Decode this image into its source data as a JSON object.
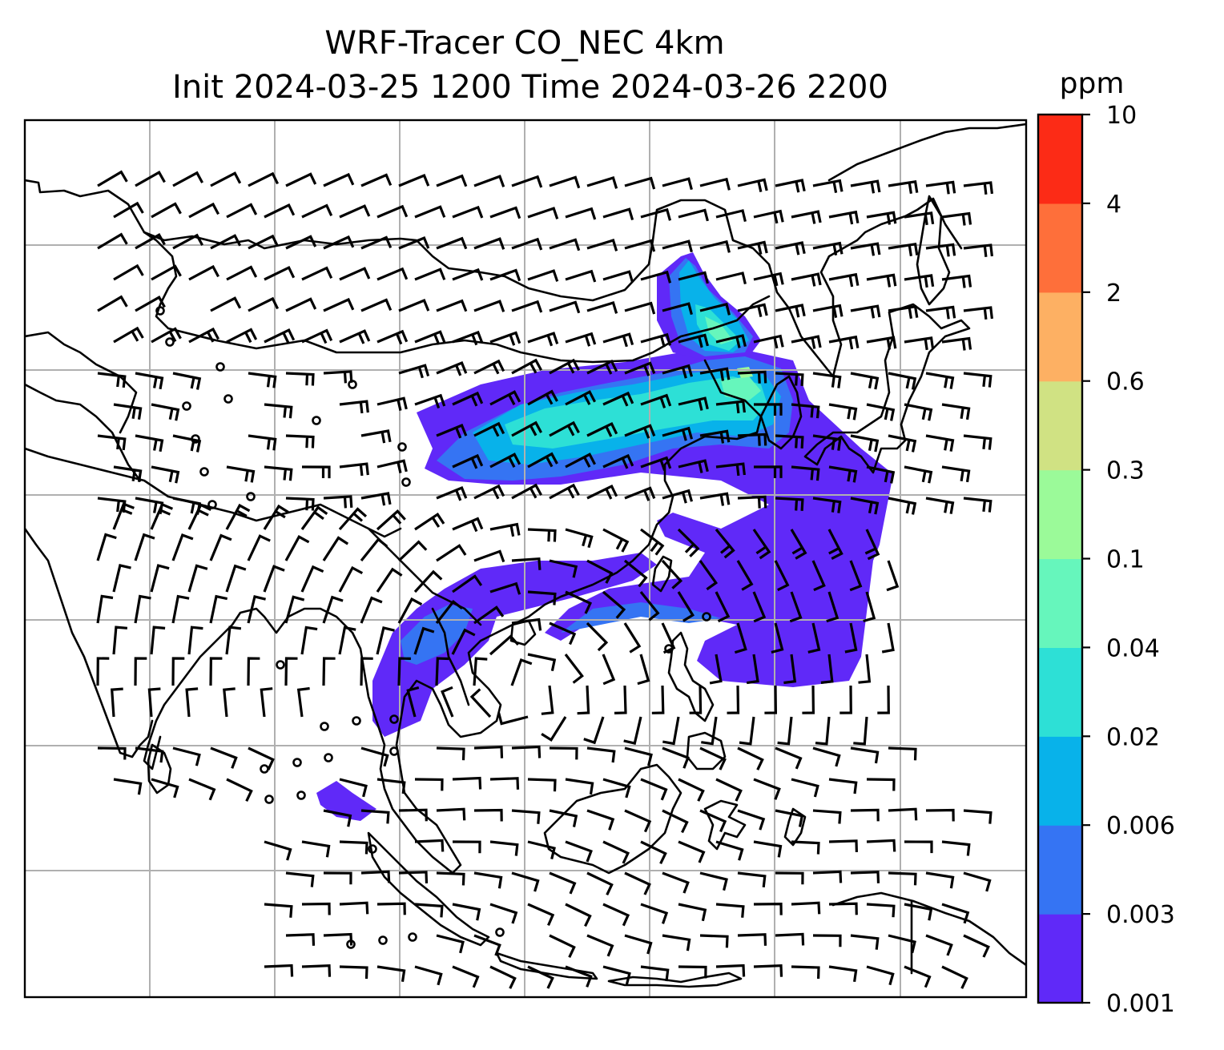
{
  "title": {
    "line1": "WRF-Tracer CO_NEC 4km",
    "line2": "Init 2024-03-25 1200 Time 2024-03-26 2200"
  },
  "colorbar": {
    "unit": "ppm",
    "levels": [
      "0.001",
      "0.003",
      "0.006",
      "0.02",
      "0.04",
      "0.1",
      "0.3",
      "0.6",
      "2",
      "4",
      "10"
    ],
    "colors": [
      "#6029f8",
      "#3574f3",
      "#08b2ea",
      "#2de0d6",
      "#66f6bc",
      "#9bfa99",
      "#d0e283",
      "#fdb063",
      "#fe6f3a",
      "#fc2b16"
    ]
  },
  "map": {
    "gridlines": true,
    "features": [
      "coastlines",
      "country-borders",
      "wind-barbs",
      "tracer-plume"
    ],
    "calm_symbol": "circle"
  }
}
